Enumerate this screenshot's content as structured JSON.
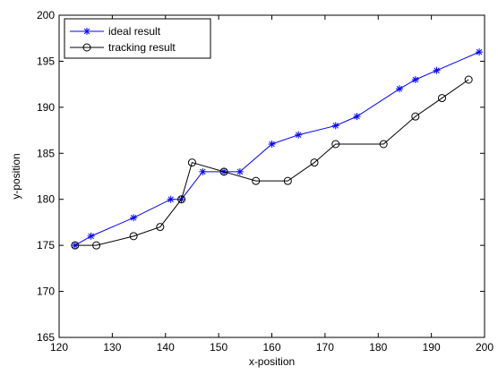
{
  "chart_data": {
    "type": "line",
    "title": "",
    "xlabel": "x-position",
    "ylabel": "y-position",
    "xlim": [
      120,
      200
    ],
    "ylim": [
      165,
      200
    ],
    "xticks": [
      120,
      130,
      140,
      150,
      160,
      170,
      180,
      190,
      200
    ],
    "yticks": [
      165,
      170,
      175,
      180,
      185,
      190,
      195,
      200
    ],
    "legend_position": "top-left",
    "grid": false,
    "series": [
      {
        "name": "ideal result",
        "color": "#0000ff",
        "marker": "asterisk",
        "x": [
          123,
          126,
          134,
          141,
          143,
          147,
          151,
          154,
          160,
          165,
          172,
          176,
          184,
          187,
          191,
          199
        ],
        "y": [
          175,
          176,
          178,
          180,
          180,
          183,
          183,
          183,
          186,
          187,
          188,
          189,
          192,
          193,
          194,
          196
        ]
      },
      {
        "name": "tracking result",
        "color": "#000000",
        "marker": "circle",
        "x": [
          123,
          127,
          134,
          139,
          143,
          145,
          151,
          157,
          163,
          168,
          172,
          181,
          187,
          192,
          197
        ],
        "y": [
          175,
          175,
          176,
          177,
          180,
          184,
          183,
          182,
          182,
          184,
          186,
          186,
          189,
          191,
          193
        ]
      }
    ]
  }
}
